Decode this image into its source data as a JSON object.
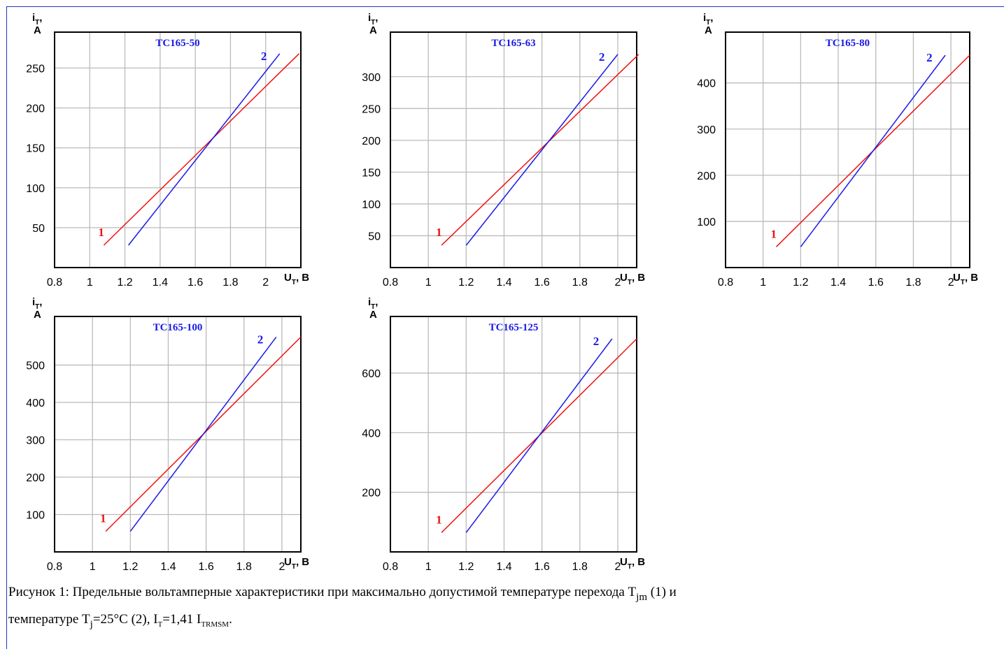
{
  "colors": {
    "curve_1": "#ee1111",
    "curve_2": "#1a1ae6",
    "grid": "#bbbbbb",
    "axes": "#000000",
    "title": "#1a1ae6",
    "frame": "#2233bb"
  },
  "chart_data": [
    {
      "type": "line",
      "title": "ТС165-50",
      "ylabel": "iT, A",
      "xlabel": "UT, B",
      "x_ticks": [
        "0.8",
        "1",
        "1.2",
        "1.4",
        "1.6",
        "1.8",
        "2"
      ],
      "y_ticks": [
        "50",
        "100",
        "150",
        "200",
        "250"
      ],
      "xlim": [
        0.8,
        2.2
      ],
      "ylim": [
        0,
        295
      ],
      "grid": true,
      "series": [
        {
          "name": "1",
          "x": [
            1.08,
            2.19
          ],
          "y": [
            28,
            268
          ]
        },
        {
          "name": "2",
          "x": [
            1.22,
            2.08
          ],
          "y": [
            28,
            268
          ]
        }
      ]
    },
    {
      "type": "line",
      "title": "ТС165-63",
      "ylabel": "iT, A",
      "xlabel": "UT, B",
      "x_ticks": [
        "0.8",
        "1",
        "1.2",
        "1.4",
        "1.6",
        "1.8",
        "2"
      ],
      "y_ticks": [
        "50",
        "100",
        "150",
        "200",
        "250",
        "300"
      ],
      "xlim": [
        0.8,
        2.1
      ],
      "ylim": [
        0,
        370
      ],
      "grid": true,
      "series": [
        {
          "name": "1",
          "x": [
            1.07,
            2.11
          ],
          "y": [
            35,
            335
          ]
        },
        {
          "name": "2",
          "x": [
            1.2,
            2.0
          ],
          "y": [
            35,
            335
          ]
        }
      ]
    },
    {
      "type": "line",
      "title": "ТС165-80",
      "ylabel": "iT, A",
      "xlabel": "UT, B",
      "x_ticks": [
        "0.8",
        "1",
        "1.2",
        "1.4",
        "1.6",
        "1.8",
        "2"
      ],
      "y_ticks": [
        "100",
        "200",
        "300",
        "400"
      ],
      "xlim": [
        0.8,
        2.1
      ],
      "ylim": [
        0,
        510
      ],
      "grid": true,
      "series": [
        {
          "name": "1",
          "x": [
            1.07,
            2.1
          ],
          "y": [
            45,
            460
          ]
        },
        {
          "name": "2",
          "x": [
            1.2,
            1.97
          ],
          "y": [
            45,
            460
          ]
        }
      ]
    },
    {
      "type": "line",
      "title": "ТС165-100",
      "ylabel": "iT, A",
      "xlabel": "UT, B",
      "x_ticks": [
        "0.8",
        "1",
        "1.2",
        "1.4",
        "1.6",
        "1.8",
        "2"
      ],
      "y_ticks": [
        "100",
        "200",
        "300",
        "400",
        "500"
      ],
      "xlim": [
        0.8,
        2.1
      ],
      "ylim": [
        0,
        630
      ],
      "grid": true,
      "series": [
        {
          "name": "1",
          "x": [
            1.07,
            2.1
          ],
          "y": [
            55,
            575
          ]
        },
        {
          "name": "2",
          "x": [
            1.2,
            1.97
          ],
          "y": [
            55,
            575
          ]
        }
      ]
    },
    {
      "type": "line",
      "title": "ТС165-125",
      "ylabel": "iT, A",
      "xlabel": "UT, B",
      "x_ticks": [
        "0.8",
        "1",
        "1.2",
        "1.4",
        "1.6",
        "1.8",
        "2"
      ],
      "y_ticks": [
        "200",
        "400",
        "600"
      ],
      "xlim": [
        0.8,
        2.1
      ],
      "ylim": [
        0,
        790
      ],
      "grid": true,
      "series": [
        {
          "name": "1",
          "x": [
            1.07,
            2.1
          ],
          "y": [
            65,
            715
          ]
        },
        {
          "name": "2",
          "x": [
            1.2,
            1.97
          ],
          "y": [
            65,
            715
          ]
        }
      ]
    }
  ],
  "caption": {
    "text_1": "Рисунок 1: Предельные вольтамперные характеристики при максимально допустимой температуре перехода T",
    "sub_jm": "jm",
    "text_2": " (1) и",
    "text_3": "температуре T",
    "sub_j": "j",
    "text_4": "=25°C (2), I",
    "sub_T": "T",
    "text_5": "=1,41 I",
    "sub_trmsm": "TRMSM",
    "text_6": "."
  }
}
